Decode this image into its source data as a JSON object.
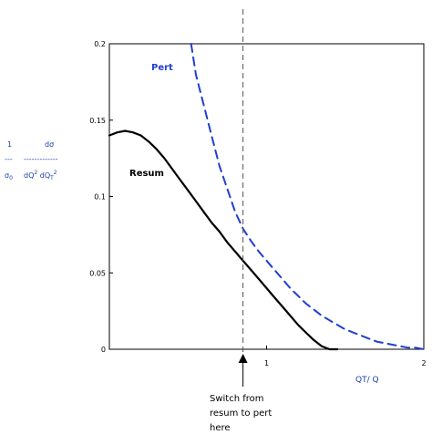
{
  "chart_data": {
    "type": "line",
    "xlabel": "QT/ Q",
    "ylabel": {
      "num_left": "1",
      "num_right": "dσ",
      "dash_left": "---",
      "dash_right": "-------------",
      "den_left": "σ",
      "den_left_sub": "0",
      "den_right_a": "dQ",
      "den_right_a_sup": "2",
      "den_right_b": " dQ",
      "den_right_b_sub": "T",
      "den_right_b_sup": "2"
    },
    "xlim": [
      0,
      2
    ],
    "ylim": [
      0,
      0.2
    ],
    "x_ticks": [
      {
        "value": 1,
        "label": "1"
      },
      {
        "value": 2,
        "label": "2"
      }
    ],
    "y_ticks": [
      {
        "value": 0,
        "label": "0"
      },
      {
        "value": 0.05,
        "label": "0.05"
      },
      {
        "value": 0.1,
        "label": "0.1"
      },
      {
        "value": 0.15,
        "label": "0.15"
      },
      {
        "value": 0.2,
        "label": "0.2"
      }
    ],
    "series": [
      {
        "name": "Resum",
        "color": "#000000",
        "style": "solid",
        "x": [
          0.0,
          0.05,
          0.1,
          0.15,
          0.2,
          0.25,
          0.3,
          0.35,
          0.4,
          0.45,
          0.5,
          0.55,
          0.6,
          0.65,
          0.7,
          0.75,
          0.8,
          0.85,
          0.9,
          0.95,
          1.0,
          1.05,
          1.1,
          1.15,
          1.2,
          1.25,
          1.3,
          1.35,
          1.4,
          1.45
        ],
        "y": [
          0.14,
          0.142,
          0.143,
          0.142,
          0.14,
          0.136,
          0.131,
          0.125,
          0.118,
          0.111,
          0.104,
          0.097,
          0.09,
          0.083,
          0.077,
          0.07,
          0.064,
          0.058,
          0.052,
          0.046,
          0.04,
          0.034,
          0.028,
          0.022,
          0.016,
          0.011,
          0.006,
          0.002,
          0.0,
          0.0
        ]
      },
      {
        "name": "Pert",
        "color": "#1f3fd0",
        "style": "dashed",
        "x": [
          0.52,
          0.55,
          0.6,
          0.65,
          0.7,
          0.75,
          0.8,
          0.85,
          0.9,
          0.95,
          1.0,
          1.05,
          1.1,
          1.15,
          1.2,
          1.25,
          1.3,
          1.35,
          1.4,
          1.45,
          1.5,
          1.55,
          1.6,
          1.65,
          1.7,
          1.75,
          1.8,
          1.85,
          1.9,
          1.95,
          2.0
        ],
        "y": [
          0.2,
          0.18,
          0.16,
          0.14,
          0.12,
          0.105,
          0.09,
          0.079,
          0.071,
          0.064,
          0.058,
          0.052,
          0.046,
          0.04,
          0.035,
          0.03,
          0.026,
          0.022,
          0.019,
          0.016,
          0.013,
          0.011,
          0.009,
          0.007,
          0.005,
          0.004,
          0.003,
          0.002,
          0.001,
          0.001,
          0.0
        ]
      }
    ],
    "series_labels": [
      {
        "text": "Pert",
        "color": "#1f3fd0"
      },
      {
        "text": "Resum",
        "color": "#000000"
      }
    ],
    "switch_marker": {
      "x": 0.85,
      "label_lines": [
        "Switch from",
        "resum to pert",
        "here"
      ]
    },
    "grid": false
  }
}
